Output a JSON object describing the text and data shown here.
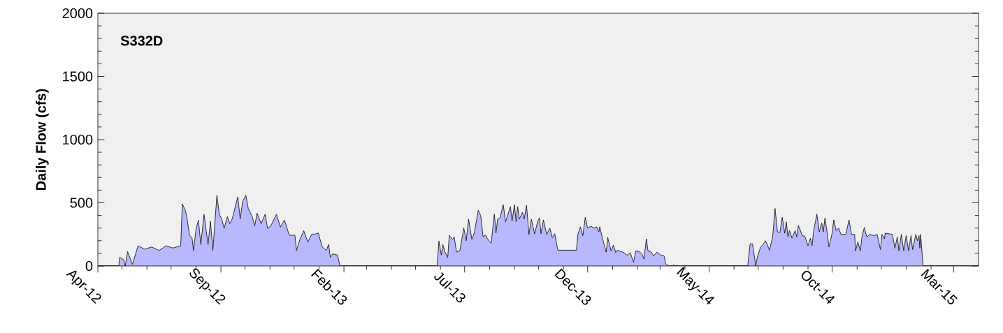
{
  "chart_data": {
    "type": "area",
    "title": "S332D",
    "ylabel": "Daily Flow (cfs)",
    "xlim": [
      "2012-04-01",
      "2015-04-01"
    ],
    "xticks": [
      {
        "value": "2012-04-01",
        "label": "Apr-12"
      },
      {
        "value": "2012-05-01",
        "label": null
      },
      {
        "value": "2012-06-01",
        "label": null
      },
      {
        "value": "2012-07-01",
        "label": null
      },
      {
        "value": "2012-08-01",
        "label": null
      },
      {
        "value": "2012-09-01",
        "label": "Sep-12"
      },
      {
        "value": "2012-10-01",
        "label": null
      },
      {
        "value": "2012-11-01",
        "label": null
      },
      {
        "value": "2012-12-01",
        "label": null
      },
      {
        "value": "2013-01-01",
        "label": null
      },
      {
        "value": "2013-02-01",
        "label": "Feb-13"
      },
      {
        "value": "2013-03-01",
        "label": null
      },
      {
        "value": "2013-04-01",
        "label": null
      },
      {
        "value": "2013-05-01",
        "label": null
      },
      {
        "value": "2013-06-01",
        "label": null
      },
      {
        "value": "2013-07-01",
        "label": "Jul-13"
      },
      {
        "value": "2013-08-01",
        "label": null
      },
      {
        "value": "2013-09-01",
        "label": null
      },
      {
        "value": "2013-10-01",
        "label": null
      },
      {
        "value": "2013-11-01",
        "label": null
      },
      {
        "value": "2013-12-01",
        "label": "Dec-13"
      },
      {
        "value": "2014-01-01",
        "label": null
      },
      {
        "value": "2014-02-01",
        "label": null
      },
      {
        "value": "2014-03-01",
        "label": null
      },
      {
        "value": "2014-04-01",
        "label": null
      },
      {
        "value": "2014-05-01",
        "label": "May-14"
      },
      {
        "value": "2014-06-01",
        "label": null
      },
      {
        "value": "2014-07-01",
        "label": null
      },
      {
        "value": "2014-08-01",
        "label": null
      },
      {
        "value": "2014-09-01",
        "label": null
      },
      {
        "value": "2014-10-01",
        "label": "Oct-14"
      },
      {
        "value": "2014-11-01",
        "label": null
      },
      {
        "value": "2014-12-01",
        "label": null
      },
      {
        "value": "2015-01-01",
        "label": null
      },
      {
        "value": "2015-02-01",
        "label": null
      },
      {
        "value": "2015-03-01",
        "label": "Mar-15"
      }
    ],
    "ylim": [
      0,
      2000
    ],
    "yticks": [
      0,
      {
        "value": 100,
        "label": null
      },
      {
        "value": 200,
        "label": null
      },
      {
        "value": 300,
        "label": null
      },
      {
        "value": 400,
        "label": null
      },
      500,
      {
        "value": 600,
        "label": null
      },
      {
        "value": 700,
        "label": null
      },
      {
        "value": 800,
        "label": null
      },
      {
        "value": 900,
        "label": null
      },
      1000,
      {
        "value": 1100,
        "label": null
      },
      {
        "value": 1200,
        "label": null
      },
      {
        "value": 1300,
        "label": null
      },
      {
        "value": 1400,
        "label": null
      },
      1500,
      {
        "value": 1600,
        "label": null
      },
      {
        "value": 1700,
        "label": null
      },
      {
        "value": 1800,
        "label": null
      },
      {
        "value": 1900,
        "label": null
      },
      2000
    ],
    "series": [
      {
        "color": "#b8b8ff",
        "x": [
          "2012-04-01",
          "2012-04-27",
          "2012-04-28",
          "2012-05-03",
          "2012-05-05",
          "2012-05-08",
          "2012-05-14",
          "2012-05-21",
          "2012-05-29",
          "2012-06-07",
          "2012-06-16",
          "2012-06-25",
          "2012-07-03",
          "2012-07-13",
          "2012-07-15",
          "2012-07-19",
          "2012-07-21",
          "2012-07-24",
          "2012-07-27",
          "2012-07-29",
          "2012-08-01",
          "2012-08-04",
          "2012-08-07",
          "2012-08-11",
          "2012-08-16",
          "2012-08-19",
          "2012-08-22",
          "2012-08-27",
          "2012-08-30",
          "2012-09-02",
          "2012-09-05",
          "2012-09-09",
          "2012-09-12",
          "2012-09-15",
          "2012-09-22",
          "2012-09-25",
          "2012-09-28",
          "2012-10-02",
          "2012-10-05",
          "2012-10-10",
          "2012-10-13",
          "2012-10-16",
          "2012-10-21",
          "2012-10-26",
          "2012-10-29",
          "2012-11-02",
          "2012-11-09",
          "2012-11-14",
          "2012-11-19",
          "2012-11-25",
          "2012-12-02",
          "2012-12-04",
          "2012-12-08",
          "2012-12-13",
          "2012-12-18",
          "2012-12-23",
          "2012-12-27",
          "2012-12-31",
          "2013-01-05",
          "2013-01-10",
          "2013-01-13",
          "2013-01-15",
          "2013-01-18",
          "2013-01-24",
          "2013-01-27",
          "2013-05-28",
          "2013-05-30",
          "2013-06-02",
          "2013-06-04",
          "2013-06-06",
          "2013-06-10",
          "2013-06-12",
          "2013-06-16",
          "2013-06-18",
          "2013-06-21",
          "2013-06-25",
          "2013-06-30",
          "2013-07-03",
          "2013-07-06",
          "2013-07-10",
          "2013-07-13",
          "2013-07-18",
          "2013-07-21",
          "2013-07-24",
          "2013-07-27",
          "2013-07-29",
          "2013-08-03",
          "2013-08-07",
          "2013-08-09",
          "2013-08-11",
          "2013-08-14",
          "2013-08-18",
          "2013-08-21",
          "2013-08-24",
          "2013-08-27",
          "2013-08-29",
          "2013-09-01",
          "2013-09-03",
          "2013-09-05",
          "2013-09-07",
          "2013-09-11",
          "2013-09-13",
          "2013-09-16",
          "2013-09-19",
          "2013-09-22",
          "2013-09-26",
          "2013-09-30",
          "2013-10-02",
          "2013-10-04",
          "2013-10-07",
          "2013-10-11",
          "2013-10-15",
          "2013-10-18",
          "2013-10-21",
          "2013-10-25",
          "2013-11-17",
          "2013-11-19",
          "2013-11-22",
          "2013-11-25",
          "2013-11-28",
          "2013-12-01",
          "2013-12-05",
          "2013-12-09",
          "2013-12-12",
          "2013-12-15",
          "2013-12-16",
          "2013-12-21",
          "2013-12-24",
          "2013-12-26",
          "2013-12-30",
          "2014-01-02",
          "2014-01-05",
          "2014-01-07",
          "2014-01-15",
          "2014-01-19",
          "2014-01-23",
          "2014-01-27",
          "2014-01-30",
          "2014-02-04",
          "2014-02-07",
          "2014-02-09",
          "2014-02-12",
          "2014-02-14",
          "2014-02-18",
          "2014-02-21",
          "2014-02-25",
          "2014-03-02",
          "2014-03-06",
          "2014-03-08",
          "2014-03-11",
          "2014-03-17",
          "2014-03-18",
          "2014-03-19",
          "2014-06-18",
          "2014-06-21",
          "2014-06-24",
          "2014-06-28",
          "2014-06-30",
          "2014-07-04",
          "2014-07-07",
          "2014-07-10",
          "2014-07-12",
          "2014-07-15",
          "2014-07-19",
          "2014-07-22",
          "2014-07-25",
          "2014-07-28",
          "2014-07-31",
          "2014-08-03",
          "2014-08-05",
          "2014-08-07",
          "2014-08-09",
          "2014-08-12",
          "2014-08-16",
          "2014-08-18",
          "2014-08-20",
          "2014-08-25",
          "2014-08-28",
          "2014-09-01",
          "2014-09-04",
          "2014-09-06",
          "2014-09-08",
          "2014-09-12",
          "2014-09-15",
          "2014-09-18",
          "2014-09-20",
          "2014-09-22",
          "2014-09-24",
          "2014-09-27",
          "2014-10-01",
          "2014-10-03",
          "2014-10-06",
          "2014-10-09",
          "2014-10-12",
          "2014-10-18",
          "2014-10-22",
          "2014-10-25",
          "2014-10-29",
          "2014-10-30",
          "2014-11-02",
          "2014-11-05",
          "2014-11-07",
          "2014-11-10",
          "2014-11-13",
          "2014-11-17",
          "2014-11-22",
          "2014-11-26",
          "2014-11-30",
          "2014-12-02",
          "2014-12-05",
          "2014-12-06",
          "2014-12-15",
          "2014-12-18",
          "2014-12-21",
          "2014-12-23",
          "2014-12-26",
          "2014-12-29",
          "2015-01-01",
          "2015-01-04",
          "2015-01-07",
          "2015-01-09",
          "2015-01-13",
          "2015-01-15",
          "2015-01-17",
          "2015-01-18",
          "2015-01-19",
          "2015-01-22",
          "2015-04-01"
        ],
        "values": [
          0,
          0,
          68,
          50,
          0,
          114,
          13,
          160,
          133,
          150,
          123,
          160,
          142,
          160,
          492,
          437,
          372,
          243,
          225,
          123,
          289,
          363,
          170,
          409,
          170,
          354,
          123,
          560,
          409,
          372,
          298,
          390,
          335,
          372,
          547,
          372,
          510,
          560,
          455,
          390,
          317,
          418,
          335,
          409,
          298,
          317,
          409,
          308,
          363,
          243,
          243,
          123,
          206,
          280,
          188,
          252,
          252,
          261,
          151,
          123,
          170,
          68,
          96,
          87,
          0,
          0,
          197,
          87,
          170,
          120,
          66,
          243,
          210,
          230,
          110,
          120,
          300,
          200,
          370,
          210,
          260,
          440,
          400,
          230,
          245,
          220,
          180,
          410,
          260,
          370,
          380,
          485,
          350,
          410,
          470,
          355,
          485,
          350,
          470,
          370,
          425,
          370,
          480,
          250,
          370,
          255,
          355,
          380,
          255,
          365,
          250,
          300,
          225,
          255,
          125,
          125,
          255,
          310,
          240,
          385,
          300,
          315,
          300,
          310,
          270,
          310,
          180,
          110,
          225,
          120,
          165,
          105,
          125,
          105,
          85,
          105,
          30,
          120,
          110,
          90,
          55,
          215,
          120,
          110,
          80,
          110,
          85,
          80,
          20,
          0,
          0,
          10,
          0,
          0,
          175,
          175,
          0,
          70,
          150,
          170,
          200,
          175,
          125,
          230,
          455,
          270,
          265,
          385,
          260,
          350,
          230,
          280,
          220,
          280,
          230,
          320,
          240,
          235,
          160,
          220,
          160,
          280,
          410,
          270,
          340,
          270,
          380,
          300,
          150,
          260,
          365,
          280,
          300,
          250,
          250,
          365,
          250,
          250,
          120,
          190,
          120,
          230,
          305,
          230,
          250,
          240,
          250,
          130,
          250,
          215,
          260,
          250,
          140,
          230,
          120,
          250,
          120,
          240,
          120,
          240,
          130,
          250,
          200,
          240,
          140,
          250,
          0,
          0
        ]
      }
    ]
  }
}
